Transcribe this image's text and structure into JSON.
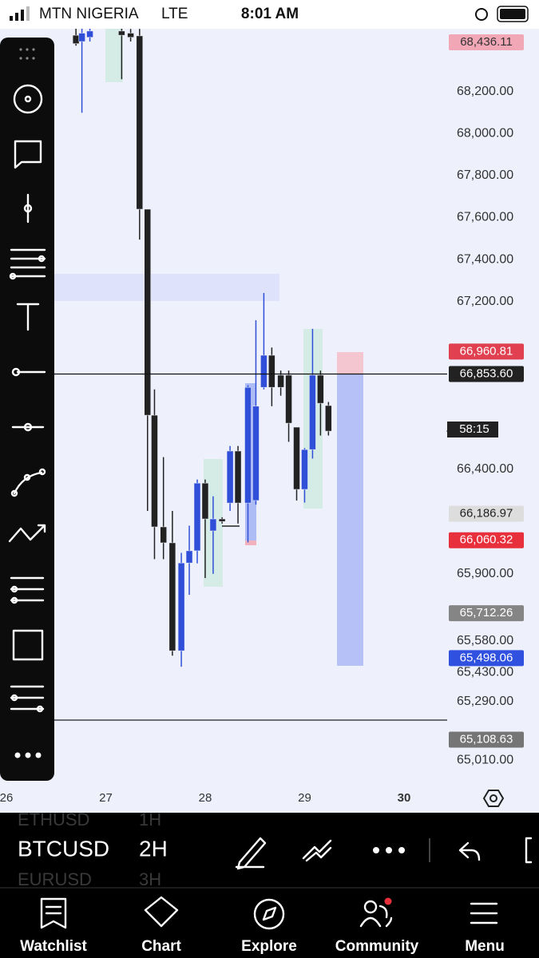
{
  "status_bar": {
    "carrier": "MTN NIGERIA",
    "network": "LTE",
    "time": "8:01 AM"
  },
  "chart_data": {
    "type": "candlestick",
    "up_color": "#2f4fd8",
    "down_color": "#222222",
    "xlim": [
      25.936,
      30.434
    ],
    "xticks": [
      26,
      27,
      28,
      29,
      30
    ],
    "ylim": [
      64886,
      68501
    ],
    "yticks": [
      {
        "value": 68200,
        "label": "68,200.00"
      },
      {
        "value": 68000,
        "label": "68,000.00"
      },
      {
        "value": 67800,
        "label": "67,800.00"
      },
      {
        "value": 67600,
        "label": "67,600.00"
      },
      {
        "value": 67400,
        "label": "67,400.00"
      },
      {
        "value": 67200,
        "label": "67,200.00"
      },
      {
        "value": 66400,
        "label": "66,400.00"
      },
      {
        "value": 65900,
        "label": "65,900.00"
      },
      {
        "value": 65580,
        "label": "65,580.00"
      },
      {
        "value": 65430,
        "label": "65,430.00"
      },
      {
        "value": 65290,
        "label": "65,290.00"
      },
      {
        "value": 65010,
        "label": "65,010.00"
      }
    ],
    "candles": [
      {
        "x": 26.7,
        "open": 68470,
        "high": 68520,
        "low": 68420,
        "close": 68430
      },
      {
        "x": 26.76,
        "open": 68440,
        "high": 68520,
        "low": 68100,
        "close": 68480
      },
      {
        "x": 26.84,
        "open": 68460,
        "high": 68520,
        "low": 68440,
        "close": 68490
      },
      {
        "x": 27.16,
        "open": 68490,
        "high": 68520,
        "low": 68260,
        "close": 68470
      },
      {
        "x": 27.25,
        "open": 68480,
        "high": 68500,
        "low": 68440,
        "close": 68460
      },
      {
        "x": 27.34,
        "open": 68467,
        "high": 68500,
        "low": 67495,
        "close": 67640
      },
      {
        "x": 27.42,
        "open": 67640,
        "high": 67640,
        "low": 66200,
        "close": 66657
      },
      {
        "x": 27.49,
        "open": 66657,
        "high": 66780,
        "low": 65970,
        "close": 66124
      },
      {
        "x": 27.58,
        "open": 66124,
        "high": 66457,
        "low": 65970,
        "close": 66048
      },
      {
        "x": 27.67,
        "open": 66048,
        "high": 66200,
        "low": 65510,
        "close": 65533
      },
      {
        "x": 27.76,
        "open": 65533,
        "high": 66000,
        "low": 65457,
        "close": 65952
      },
      {
        "x": 27.84,
        "open": 65952,
        "high": 66130,
        "low": 65800,
        "close": 66010
      },
      {
        "x": 27.92,
        "open": 66010,
        "high": 66350,
        "low": 65950,
        "close": 66333
      },
      {
        "x": 28.0,
        "open": 66333,
        "high": 66350,
        "low": 65880,
        "close": 66162
      },
      {
        "x": 28.08,
        "open": 66105,
        "high": 66270,
        "low": 65900,
        "close": 66162
      },
      {
        "x": 28.17,
        "open": 66162,
        "high": 66170,
        "low": 66140,
        "close": 66150
      },
      {
        "x": 28.25,
        "open": 66238,
        "high": 66510,
        "low": 66200,
        "close": 66486
      },
      {
        "x": 28.33,
        "open": 66486,
        "high": 66510,
        "low": 66140,
        "close": 66238
      },
      {
        "x": 28.43,
        "open": 66238,
        "high": 66800,
        "low": 66050,
        "close": 66790
      },
      {
        "x": 28.51,
        "open": 66250,
        "high": 67110,
        "low": 66230,
        "close": 66700
      },
      {
        "x": 28.59,
        "open": 66790,
        "high": 67240,
        "low": 66780,
        "close": 66943
      },
      {
        "x": 28.67,
        "open": 66943,
        "high": 66980,
        "low": 66700,
        "close": 66790
      },
      {
        "x": 28.76,
        "open": 66848,
        "high": 66870,
        "low": 66750,
        "close": 66790
      },
      {
        "x": 28.84,
        "open": 66848,
        "high": 66870,
        "low": 66530,
        "close": 66619
      },
      {
        "x": 28.92,
        "open": 66600,
        "high": 66600,
        "low": 66250,
        "close": 66303
      },
      {
        "x": 29.0,
        "open": 66303,
        "high": 66500,
        "low": 66240,
        "close": 66493
      },
      {
        "x": 29.08,
        "open": 66493,
        "high": 67069,
        "low": 66450,
        "close": 66848
      },
      {
        "x": 29.16,
        "open": 66848,
        "high": 66870,
        "low": 66560,
        "close": 66714
      },
      {
        "x": 29.24,
        "open": 66703,
        "high": 66720,
        "low": 66560,
        "close": 66581
      }
    ],
    "price_labels": [
      {
        "value": 68436.11,
        "label": "68,436.11",
        "color": "#f2a7b6",
        "text_color": "#333333"
      },
      {
        "value": 66960.81,
        "label": "66,960.81",
        "color": "#e0404f",
        "text_color": "#ffffff"
      },
      {
        "value": 66853.6,
        "label": "66,853.60",
        "color": "#222222",
        "text_color": "#ffffff"
      },
      {
        "value": 66186.97,
        "label": "66,186.97",
        "color": "#dddddd",
        "text_color": "#222222"
      },
      {
        "value": 66060.32,
        "label": "66,060.32",
        "color": "#e8303c",
        "text_color": "#ffffff"
      },
      {
        "value": 65712.26,
        "label": "65,712.26",
        "color": "#858585",
        "text_color": "#ffffff"
      },
      {
        "value": 65498.06,
        "label": "65,498.06",
        "color": "#3050e0",
        "text_color": "#ffffff"
      },
      {
        "value": 65108.63,
        "label": "65,108.63",
        "color": "#757575",
        "text_color": "#ffffff"
      }
    ],
    "countdown": "58:15"
  },
  "symbol_picker": {
    "items": [
      {
        "symbol": "ETHUSD",
        "interval": "1H"
      },
      {
        "symbol": "BTCUSD",
        "interval": "2H"
      },
      {
        "symbol": "EURUSD",
        "interval": "3H"
      }
    ]
  },
  "tab_bar": [
    "Watchlist",
    "Chart",
    "Explore",
    "Community",
    "Menu"
  ]
}
